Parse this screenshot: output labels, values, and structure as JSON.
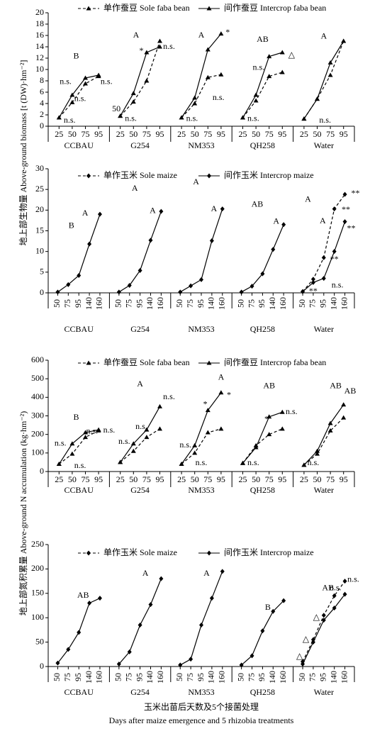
{
  "chart_data": [
    {
      "type": "line",
      "ylim": [
        0,
        20
      ],
      "yticks": [
        0,
        2,
        4,
        6,
        8,
        10,
        12,
        14,
        16,
        18,
        20
      ],
      "ylabel": "地上部生物量 Above-ground biomass [t (DW)·hm⁻²]",
      "categories": [
        "25",
        "50",
        "75",
        "95"
      ],
      "series": [
        {
          "name": "单作蚕豆 Sole faba bean",
          "color": "#000000",
          "dash": true,
          "marker": "triangle"
        },
        {
          "name": "间作蚕豆 Intercrop faba bean",
          "color": "#000000",
          "dash": false,
          "marker": "triangle"
        }
      ],
      "groups": [
        {
          "label": "CCBAU",
          "values": [
            [
              1.5,
              4.2,
              7.5,
              8.8
            ],
            [
              1.5,
              5.5,
              8.5,
              9.0
            ]
          ]
        },
        {
          "label": "G254",
          "values": [
            [
              1.8,
              4.3,
              8.0,
              15.0
            ],
            [
              1.8,
              5.8,
              13.0,
              14.0
            ]
          ]
        },
        {
          "label": "NM353",
          "values": [
            [
              1.5,
              4.0,
              8.6,
              9.1
            ],
            [
              1.5,
              5.0,
              13.5,
              16.3
            ]
          ]
        },
        {
          "label": "QH258",
          "values": [
            [
              1.5,
              4.5,
              8.8,
              9.5
            ],
            [
              1.5,
              5.5,
              12.3,
              13.0
            ]
          ]
        },
        {
          "label": "Water",
          "values": [
            [
              1.3,
              4.8,
              9.0,
              15.0
            ],
            [
              1.3,
              4.8,
              11.2,
              15.0
            ]
          ]
        }
      ],
      "annotations": [
        {
          "text": "B",
          "group": 0,
          "at": 1.3,
          "y": 12.3
        },
        {
          "text": "n.s.",
          "group": 0,
          "at": 0.5,
          "y": 7.8
        },
        {
          "text": "n.s.",
          "group": 0,
          "at": 1.6,
          "y": 4.8
        },
        {
          "text": "n.s.",
          "group": 0,
          "at": 3.6,
          "y": 7.8
        },
        {
          "text": "n.s.",
          "group": 0,
          "at": 0.8,
          "y": 1.0
        },
        {
          "text": "A",
          "group": 1,
          "at": 1.2,
          "y": 16.0
        },
        {
          "text": "*",
          "group": 1,
          "at": 1.6,
          "y": 13.2
        },
        {
          "text": "n.s.",
          "group": 1,
          "at": 3.7,
          "y": 14.0
        },
        {
          "text": "n.s.",
          "group": 1,
          "at": 0.8,
          "y": 1.3
        },
        {
          "text": "50",
          "group": 1,
          "at": -0.3,
          "y": 3.0
        },
        {
          "text": "A",
          "group": 2,
          "at": 1.5,
          "y": 16.0
        },
        {
          "text": "*",
          "group": 2,
          "at": 3.5,
          "y": 16.5
        },
        {
          "text": "n.s.",
          "group": 2,
          "at": 2.8,
          "y": 5.0
        },
        {
          "text": "n.s.",
          "group": 2,
          "at": 0.8,
          "y": 1.3
        },
        {
          "text": "AB",
          "group": 3,
          "at": 1.5,
          "y": 15.2
        },
        {
          "text": "n.s.",
          "group": 3,
          "at": 1.2,
          "y": 10.3
        },
        {
          "text": "△",
          "group": 3,
          "at": 3.7,
          "y": 12.5
        },
        {
          "text": "n.s.",
          "group": 3,
          "at": 0.8,
          "y": 1.3
        },
        {
          "text": "A",
          "group": 4,
          "at": 1.5,
          "y": 15.8
        },
        {
          "text": "n.s.",
          "group": 4,
          "at": 1.6,
          "y": 1.0
        }
      ]
    },
    {
      "type": "line",
      "ylim": [
        0,
        30
      ],
      "yticks": [
        0,
        5,
        10,
        15,
        20,
        25,
        30
      ],
      "categories": [
        "50",
        "75",
        "95",
        "140",
        "160"
      ],
      "series": [
        {
          "name": "单作玉米 Sole maize",
          "color": "#000000",
          "dash": true,
          "marker": "diamond"
        },
        {
          "name": "间作玉米 Intercrop maize",
          "color": "#000000",
          "dash": false,
          "marker": "diamond"
        }
      ],
      "groups": [
        {
          "label": "CCBAU",
          "values": [
            [
              null,
              null,
              null,
              null,
              null
            ],
            [
              0.2,
              2.0,
              4.2,
              11.8,
              19.0
            ]
          ]
        },
        {
          "label": "G254",
          "values": [
            [
              null,
              null,
              null,
              null,
              null
            ],
            [
              0.2,
              1.8,
              5.4,
              12.7,
              19.7
            ]
          ]
        },
        {
          "label": "NM353",
          "values": [
            [
              null,
              null,
              null,
              null,
              null
            ],
            [
              0.2,
              1.7,
              3.2,
              12.6,
              20.3
            ]
          ]
        },
        {
          "label": "QH258",
          "values": [
            [
              null,
              null,
              null,
              null,
              null
            ],
            [
              0.2,
              1.6,
              4.6,
              10.5,
              16.5
            ]
          ]
        },
        {
          "label": "Water",
          "values": [
            [
              0.3,
              3.3,
              8.5,
              20.3,
              23.8
            ],
            [
              0.3,
              2.5,
              3.5,
              10.0,
              17.2
            ]
          ]
        }
      ],
      "annotations": [
        {
          "text": "B",
          "group": 0,
          "at": 1.3,
          "y": 16.2
        },
        {
          "text": "A",
          "group": 0,
          "at": 2.6,
          "y": 19.2
        },
        {
          "text": "A",
          "group": 1,
          "at": 1.5,
          "y": 25.2
        },
        {
          "text": "A",
          "group": 1,
          "at": 3.2,
          "y": 19.8
        },
        {
          "text": "A",
          "group": 2,
          "at": 1.5,
          "y": 26.7
        },
        {
          "text": "A",
          "group": 2,
          "at": 3.2,
          "y": 20.2
        },
        {
          "text": "AB",
          "group": 3,
          "at": 1.5,
          "y": 21.3
        },
        {
          "text": "A",
          "group": 3,
          "at": 3.3,
          "y": 17.2
        },
        {
          "text": "A",
          "group": 4,
          "at": 0.5,
          "y": 22.5
        },
        {
          "text": "A",
          "group": 4,
          "at": 1.9,
          "y": 17.3
        },
        {
          "text": "**",
          "group": 4,
          "at": 5.0,
          "y": 24.0
        },
        {
          "text": "**",
          "group": 4,
          "at": 4.1,
          "y": 20.0
        },
        {
          "text": "**",
          "group": 4,
          "at": 4.6,
          "y": 15.5
        },
        {
          "text": "**",
          "group": 4,
          "at": 3.0,
          "y": 8.0
        },
        {
          "text": "n.s.",
          "group": 4,
          "at": 3.3,
          "y": 1.8
        },
        {
          "text": "**",
          "group": 4,
          "at": 1.0,
          "y": 0.3
        }
      ]
    },
    {
      "type": "line",
      "ylim": [
        0,
        600
      ],
      "yticks": [
        0,
        100,
        200,
        300,
        400,
        500,
        600
      ],
      "ylabel": "地上部氮积累量 Above-ground N accumulation (kg·hm⁻²)",
      "categories": [
        "25",
        "50",
        "75",
        "95"
      ],
      "series": [
        {
          "name": "单作蚕豆 Sole faba bean",
          "color": "#000000",
          "dash": true,
          "marker": "triangle"
        },
        {
          "name": "间作蚕豆 Intercrop faba bean",
          "color": "#000000",
          "dash": false,
          "marker": "triangle"
        }
      ],
      "groups": [
        {
          "label": "CCBAU",
          "values": [
            [
              40,
              95,
              185,
              220
            ],
            [
              40,
              150,
              210,
              225
            ]
          ]
        },
        {
          "label": "G254",
          "values": [
            [
              50,
              110,
              185,
              230
            ],
            [
              50,
              150,
              225,
              350
            ]
          ]
        },
        {
          "label": "NM353",
          "values": [
            [
              40,
              100,
              210,
              230
            ],
            [
              40,
              140,
              330,
              425
            ]
          ]
        },
        {
          "label": "QH258",
          "values": [
            [
              45,
              140,
              200,
              230
            ],
            [
              45,
              130,
              295,
              320
            ]
          ]
        },
        {
          "label": "Water",
          "values": [
            [
              35,
              95,
              220,
              290
            ],
            [
              35,
              110,
              260,
              360
            ]
          ]
        }
      ],
      "annotations": [
        {
          "text": "B",
          "group": 0,
          "at": 1.3,
          "y": 290
        },
        {
          "text": "n.s.",
          "group": 0,
          "at": 0.1,
          "y": 150
        },
        {
          "text": "n.s.",
          "group": 0,
          "at": 1.6,
          "y": 30
        },
        {
          "text": "n.s.",
          "group": 0,
          "at": 2.5,
          "y": 215
        },
        {
          "text": "n.s.",
          "group": 0,
          "at": 3.8,
          "y": 220
        },
        {
          "text": "A",
          "group": 1,
          "at": 1.5,
          "y": 470
        },
        {
          "text": "n.s.",
          "group": 1,
          "at": 3.7,
          "y": 400
        },
        {
          "text": "n.s.",
          "group": 1,
          "at": 0.3,
          "y": 160
        },
        {
          "text": "n.s.",
          "group": 1,
          "at": 1.6,
          "y": 240
        },
        {
          "text": "A",
          "group": 2,
          "at": 3.0,
          "y": 505
        },
        {
          "text": "*",
          "group": 2,
          "at": 1.8,
          "y": 360
        },
        {
          "text": "*",
          "group": 2,
          "at": 3.6,
          "y": 410
        },
        {
          "text": "n.s.",
          "group": 2,
          "at": 0.3,
          "y": 140
        },
        {
          "text": "n.s.",
          "group": 2,
          "at": 1.5,
          "y": 45
        },
        {
          "text": "AB",
          "group": 3,
          "at": 2.0,
          "y": 460
        },
        {
          "text": "*",
          "group": 3,
          "at": 1.8,
          "y": 280
        },
        {
          "text": "n.s.",
          "group": 3,
          "at": 0.8,
          "y": 45
        },
        {
          "text": "n.s.",
          "group": 3,
          "at": 3.7,
          "y": 320
        },
        {
          "text": "AB",
          "group": 4,
          "at": 2.4,
          "y": 460
        },
        {
          "text": "AB",
          "group": 4,
          "at": 3.5,
          "y": 430
        },
        {
          "text": "n.s.",
          "group": 4,
          "at": 0.7,
          "y": 45
        }
      ]
    },
    {
      "type": "line",
      "ylim": [
        0,
        250
      ],
      "yticks": [
        0,
        50,
        100,
        150,
        200,
        250
      ],
      "categories": [
        "50",
        "75",
        "95",
        "140",
        "160"
      ],
      "series": [
        {
          "name": "单作玉米 Sole maize",
          "color": "#000000",
          "dash": true,
          "marker": "diamond"
        },
        {
          "name": "间作玉米 Intercrop maize",
          "color": "#000000",
          "dash": false,
          "marker": "diamond"
        }
      ],
      "groups": [
        {
          "label": "CCBAU",
          "values": [
            [
              null,
              null,
              null,
              null,
              null
            ],
            [
              7,
              35,
              70,
              130,
              140
            ]
          ]
        },
        {
          "label": "G254",
          "values": [
            [
              null,
              null,
              null,
              null,
              null
            ],
            [
              5,
              30,
              85,
              127,
              180
            ]
          ]
        },
        {
          "label": "NM353",
          "values": [
            [
              null,
              null,
              null,
              null,
              null
            ],
            [
              3,
              15,
              85,
              140,
              195
            ]
          ]
        },
        {
          "label": "QH258",
          "values": [
            [
              null,
              null,
              null,
              null,
              null
            ],
            [
              3,
              22,
              73,
              113,
              135
            ]
          ]
        },
        {
          "label": "Water",
          "values": [
            [
              10,
              55,
              105,
              145,
              175
            ],
            [
              5,
              50,
              95,
              120,
              148
            ]
          ]
        }
      ],
      "annotations": [
        {
          "text": "AB",
          "group": 0,
          "at": 2.4,
          "y": 145
        },
        {
          "text": "A",
          "group": 1,
          "at": 2.5,
          "y": 190
        },
        {
          "text": "A",
          "group": 2,
          "at": 2.5,
          "y": 190
        },
        {
          "text": "B",
          "group": 3,
          "at": 2.5,
          "y": 120
        },
        {
          "text": "AB",
          "group": 4,
          "at": 2.4,
          "y": 160
        },
        {
          "text": "n.s.",
          "group": 4,
          "at": 3.1,
          "y": 160
        },
        {
          "text": "n.s.",
          "group": 4,
          "at": 4.8,
          "y": 178
        },
        {
          "text": "△",
          "group": 4,
          "at": -0.3,
          "y": 20
        },
        {
          "text": "△",
          "group": 4,
          "at": 0.3,
          "y": 55
        },
        {
          "text": "△",
          "group": 4,
          "at": 1.3,
          "y": 100
        }
      ],
      "xlabel_cn": "玉米出苗后天数及5个接菌处理",
      "xlabel_en": "Days after maize emergence and 5 rhizobia treatments"
    }
  ]
}
